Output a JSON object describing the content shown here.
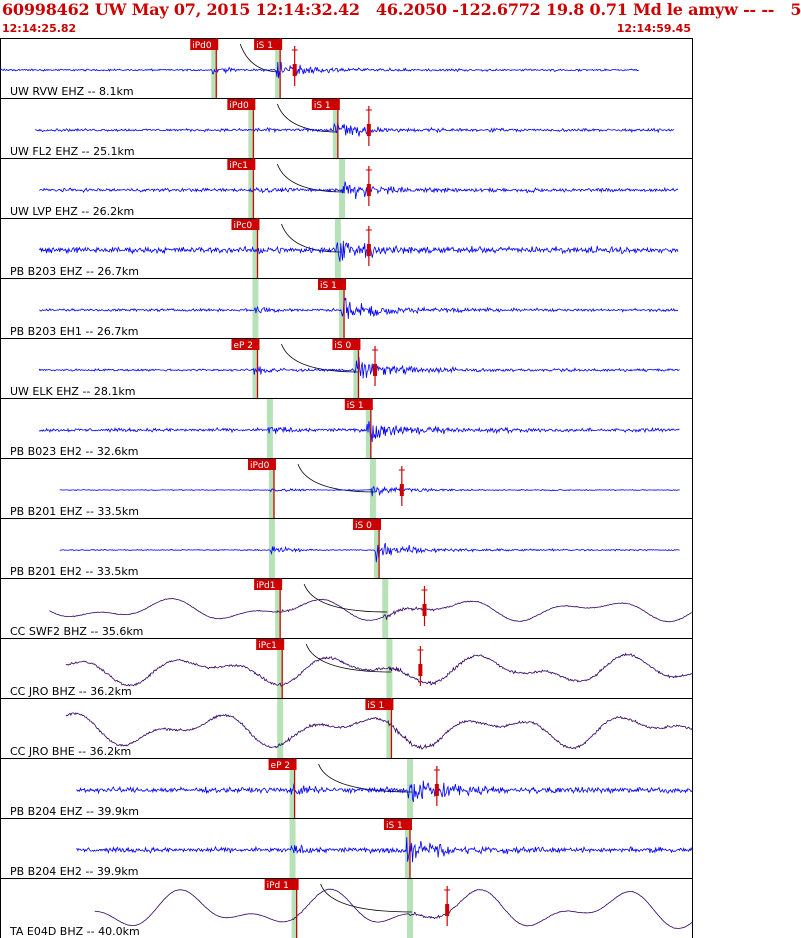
{
  "header": {
    "title": "60998462 UW May 07, 2015 12:14:32.42   46.2050 -122.6772 19.8 0.71 Md le amyw -- --   5",
    "time_start": "12:14:25.82",
    "time_end": "12:14:59.45"
  },
  "colors": {
    "short_period": "#0000ff",
    "broadband": "#330066",
    "pick": "#cc0000",
    "pick_shade": "#9fd89f",
    "frame": "#000000"
  },
  "chart_data": {
    "type": "seismogram",
    "x_unit": "seconds",
    "time_window": [
      "12:14:25.82",
      "12:14:59.45"
    ],
    "traces": [
      {
        "label": "UW RVW EHZ -- 8.1km",
        "kind": "sp",
        "p_label": "iPd0",
        "p": 10.3,
        "s_label": "iS 1",
        "s": 13.4,
        "start": 0,
        "end": 31.0,
        "noise": 0.05,
        "amp": 0.55,
        "lp": 0,
        "coda": 0.35,
        "tick": 14.3
      },
      {
        "label": "UW FL2 EHZ -- 25.1km",
        "kind": "sp",
        "p_label": "iPd0",
        "p": 12.1,
        "s_label": "iS 1",
        "s": 16.2,
        "start": 1.7,
        "end": 32.7,
        "noise": 0.07,
        "amp": 0.45,
        "lp": 0,
        "coda": 0.4,
        "tick": 17.9
      },
      {
        "label": "UW LVP EHZ -- 26.2km",
        "kind": "sp",
        "p_label": "iPc1",
        "p": 12.1,
        "s_label": "",
        "s": 16.5,
        "start": 1.9,
        "end": 32.9,
        "noise": 0.09,
        "amp": 0.6,
        "lp": 0,
        "coda": 0.45,
        "tick": 17.9
      },
      {
        "label": "PB B203 EHZ -- 26.7km",
        "kind": "sp",
        "p_label": "iPc0",
        "p": 12.3,
        "s_label": "",
        "s": 16.3,
        "start": 1.9,
        "end": 32.9,
        "noise": 0.16,
        "amp": 0.7,
        "lp": 0,
        "coda": 0.6,
        "tick": 17.9
      },
      {
        "label": "PB B203 EH1 -- 26.7km",
        "kind": "sp",
        "p_label": "",
        "p": 12.3,
        "s_label": "iS 1",
        "s": 16.5,
        "start": 1.9,
        "end": 32.9,
        "noise": 0.07,
        "amp": 0.7,
        "lp": 0,
        "coda": 0.5,
        "tick": null
      },
      {
        "label": "UW ELK EHZ -- 28.1km",
        "kind": "sp",
        "p_label": "eP 2",
        "p": 12.3,
        "s_label": "iS 0",
        "s": 17.2,
        "start": 1.9,
        "end": 33.0,
        "noise": 0.06,
        "amp": 0.75,
        "lp": 0,
        "coda": 0.45,
        "tick": 18.2
      },
      {
        "label": "PB B023 EH2 -- 32.6km",
        "kind": "sp",
        "p_label": "",
        "p": 13.0,
        "s_label": "iS 1",
        "s": 17.8,
        "start": 1.9,
        "end": 33.0,
        "noise": 0.09,
        "amp": 0.7,
        "lp": 0,
        "coda": 0.5,
        "tick": null
      },
      {
        "label": "PB B201 EHZ -- 33.5km",
        "kind": "sp",
        "p_label": "iPd0",
        "p": 13.1,
        "s_label": "",
        "s": 18.0,
        "start": 2.9,
        "end": 33.0,
        "noise": 0.02,
        "amp": 0.35,
        "lp": 0,
        "coda": 0.2,
        "tick": 19.5
      },
      {
        "label": "PB B201 EH2 -- 33.5km",
        "kind": "sp",
        "p_label": "",
        "p": 13.1,
        "s_label": "iS 0",
        "s": 18.2,
        "start": 2.9,
        "end": 33.0,
        "noise": 0.03,
        "amp": 0.65,
        "lp": 0,
        "coda": 0.3,
        "tick": null
      },
      {
        "label": "CC SWF2 BHZ -- 35.6km",
        "kind": "bb",
        "p_label": "iPd1",
        "p": 13.4,
        "s_label": "",
        "s": 18.6,
        "start": 2.4,
        "end": 33.6,
        "noise": 0.02,
        "amp": 0.2,
        "lp": 0.45,
        "coda": 0.1,
        "tick": 20.6
      },
      {
        "label": "CC JRO BHZ -- 36.2km",
        "kind": "bb",
        "p_label": "iPc1",
        "p": 13.5,
        "s_label": "",
        "s": 18.8,
        "start": 3.2,
        "end": 33.6,
        "noise": 0.07,
        "amp": 0.2,
        "lp": 0.6,
        "coda": 0.15,
        "tick": 20.4
      },
      {
        "label": "CC JRO BHE -- 36.2km",
        "kind": "bb",
        "p_label": "",
        "p": 13.5,
        "s_label": "iS 1",
        "s": 18.8,
        "start": 3.2,
        "end": 33.6,
        "noise": 0.07,
        "amp": 0.2,
        "lp": 0.7,
        "coda": 0.15,
        "tick": null
      },
      {
        "label": "PB B204 EHZ -- 39.9km",
        "kind": "sp",
        "p_label": "eP 2",
        "p": 14.1,
        "s_label": "",
        "s": 19.8,
        "start": 3.7,
        "end": 33.6,
        "noise": 0.14,
        "amp": 0.8,
        "lp": 0,
        "coda": 0.55,
        "tick": 21.2
      },
      {
        "label": "PB B204 EH2 -- 39.9km",
        "kind": "sp",
        "p_label": "",
        "p": 14.1,
        "s_label": "iS 1",
        "s": 19.7,
        "start": 3.7,
        "end": 33.6,
        "noise": 0.13,
        "amp": 0.8,
        "lp": 0,
        "coda": 0.6,
        "tick": null
      },
      {
        "label": "TA E04D BHZ -- 40.0km",
        "kind": "bb",
        "p_label": "iPd 1",
        "p": 14.2,
        "s_label": "",
        "s": 19.8,
        "start": 4.6,
        "end": 33.6,
        "noise": 0.01,
        "amp": 0.15,
        "lp": 0.8,
        "coda": 0.1,
        "tick": 21.7
      }
    ]
  }
}
